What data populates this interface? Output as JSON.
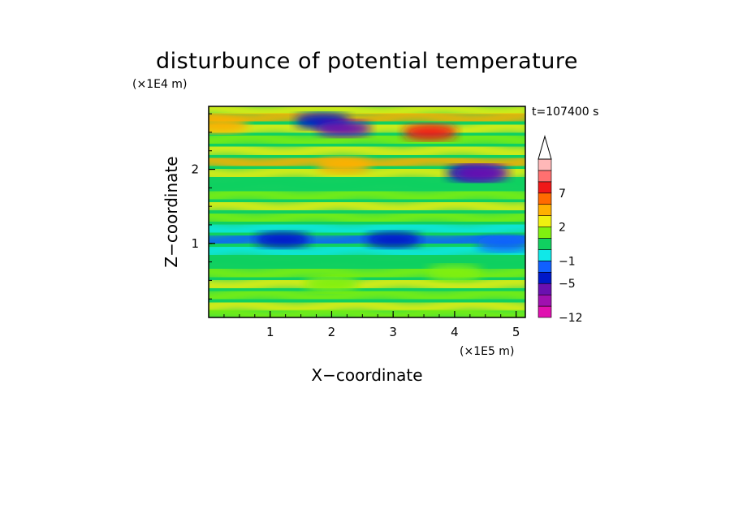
{
  "chart_data": {
    "type": "heatmap",
    "title": "disturbunce of potential temperature",
    "xlabel": "X−coordinate",
    "ylabel": "Z−coordinate",
    "x_unit": "(×1E5 m)",
    "y_unit": "(×1E4 m)",
    "time_label": "t=107400 s",
    "xlim": [
      0,
      5.15
    ],
    "ylim": [
      0,
      2.85
    ],
    "x_ticks": [
      {
        "value": 1,
        "label": "1"
      },
      {
        "value": 2,
        "label": "2"
      },
      {
        "value": 3,
        "label": "3"
      },
      {
        "value": 4,
        "label": "4"
      },
      {
        "value": 5,
        "label": "5"
      }
    ],
    "y_ticks": [
      {
        "value": 1,
        "label": "1"
      },
      {
        "value": 2,
        "label": "2"
      }
    ],
    "colorbar": {
      "levels": [
        -12,
        -9,
        -7,
        -5,
        -3,
        -1,
        0,
        1,
        2,
        4,
        5,
        7,
        8,
        9
      ],
      "tick_labels": [
        {
          "value": -12,
          "label": "−12"
        },
        {
          "value": -5,
          "label": "−5"
        },
        {
          "value": -1,
          "label": "−1"
        },
        {
          "value": 2,
          "label": "2"
        },
        {
          "value": 7,
          "label": "7"
        }
      ],
      "colors": [
        "#e010b0",
        "#a010b0",
        "#6a10b0",
        "#0018c8",
        "#1060ff",
        "#10e8e8",
        "#10d060",
        "#80f010",
        "#f0f010",
        "#ffb000",
        "#ff6a00",
        "#f01818",
        "#ff7070",
        "#ffb8b8"
      ],
      "extend": "max"
    },
    "features": [
      {
        "x": 1.85,
        "z": 2.65,
        "value": -5
      },
      {
        "x": 2.2,
        "z": 2.55,
        "value": -7
      },
      {
        "x": 2.2,
        "z": 2.05,
        "value": 4
      },
      {
        "x": 0.2,
        "z": 2.6,
        "value": 4
      },
      {
        "x": 3.6,
        "z": 2.5,
        "value": 7
      },
      {
        "x": 4.3,
        "z": 1.95,
        "value": -5
      },
      {
        "x": 4.45,
        "z": 1.95,
        "value": -7
      },
      {
        "x": 1.2,
        "z": 1.05,
        "value": -5
      },
      {
        "x": 3.0,
        "z": 1.05,
        "value": -5
      },
      {
        "x": 4.8,
        "z": 1.0,
        "value": -3
      },
      {
        "x": 2.0,
        "z": 0.45,
        "value": 1
      },
      {
        "x": 4.0,
        "z": 0.6,
        "value": 1
      }
    ]
  }
}
